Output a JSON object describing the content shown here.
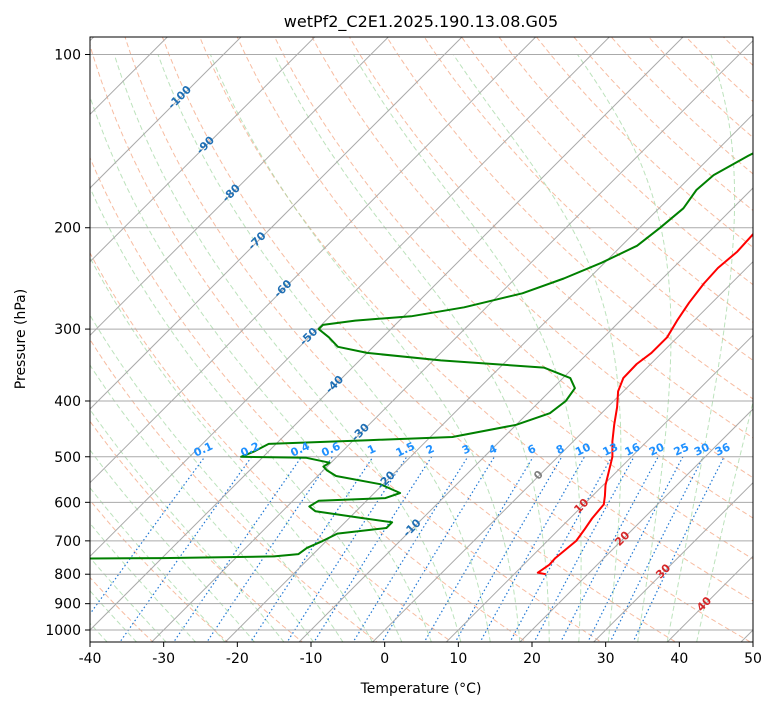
{
  "chart_data": {
    "type": "line",
    "title": "wetPf2_C2E1.2025.190.13.08.G05",
    "xlabel": "Temperature (°C)",
    "ylabel": "Pressure (hPa)",
    "x_scale": "skew-T",
    "y_scale": "log",
    "xlim": [
      -40,
      50
    ],
    "ylim": [
      1050,
      100
    ],
    "x_ticks": [
      -40,
      -30,
      -20,
      -10,
      0,
      10,
      20,
      30,
      40,
      50
    ],
    "y_ticks": [
      1000,
      900,
      800,
      700,
      600,
      500,
      400,
      300,
      200,
      100
    ],
    "grid": true,
    "colors": {
      "temperature": "#ff0000",
      "dewpoint": "#008000",
      "isotherm": "#aaaaaa",
      "dry_adiabat": "#f4a582",
      "moist_adiabat": "#a6d8a6",
      "mixing_ratio": "#1f77d4",
      "isotherm_label": "#1f6fb4",
      "moist_label": "#d62728",
      "mixing_label": "#1e90ff"
    },
    "series": [
      {
        "name": "",
        "role": "temperature",
        "points": [
          [
            14.3,
            800
          ],
          [
            13.0,
            795
          ],
          [
            13.5,
            770
          ],
          [
            13.4,
            750
          ],
          [
            13.9,
            700
          ],
          [
            13.5,
            670
          ],
          [
            13.0,
            640
          ],
          [
            12.7,
            605
          ],
          [
            11.7,
            585
          ],
          [
            10.3,
            560
          ],
          [
            8.9,
            530
          ],
          [
            7.4,
            500
          ],
          [
            5.3,
            470
          ],
          [
            3.3,
            440
          ],
          [
            1.3,
            410
          ],
          [
            -0.7,
            385
          ],
          [
            -1.8,
            365
          ],
          [
            -1.9,
            345
          ],
          [
            -1.4,
            330
          ],
          [
            -1.4,
            310
          ],
          [
            -2.3,
            290
          ],
          [
            -3.1,
            270
          ],
          [
            -3.7,
            250
          ],
          [
            -3.9,
            235
          ],
          [
            -3.5,
            220
          ],
          [
            -3.8,
            200
          ],
          [
            -5.6,
            180
          ],
          [
            -7.6,
            160
          ],
          [
            -10.2,
            145
          ],
          [
            -12.6,
            130
          ],
          [
            -15.4,
            117
          ],
          [
            -18.6,
            107
          ],
          [
            -21.4,
            100
          ]
        ]
      },
      {
        "name": "",
        "role": "dewpoint",
        "points": [
          [
            -56,
            752
          ],
          [
            -40,
            750
          ],
          [
            -25,
            745
          ],
          [
            -22,
            738
          ],
          [
            -21.7,
            720
          ],
          [
            -20.5,
            700
          ],
          [
            -19.5,
            680
          ],
          [
            -13.6,
            665
          ],
          [
            -13.6,
            650
          ],
          [
            -18.6,
            638
          ],
          [
            -25.5,
            622
          ],
          [
            -27.0,
            610
          ],
          [
            -26.5,
            596
          ],
          [
            -17.8,
            590
          ],
          [
            -16.5,
            578
          ],
          [
            -20.4,
            558
          ],
          [
            -27.5,
            540
          ],
          [
            -29.5,
            528
          ],
          [
            -30.5,
            520
          ],
          [
            -30.2,
            512
          ],
          [
            -34.0,
            502
          ],
          [
            -43.0,
            500
          ],
          [
            -42.0,
            490
          ],
          [
            -41.0,
            475
          ],
          [
            -28.0,
            468
          ],
          [
            -17.0,
            462
          ],
          [
            -10.0,
            440
          ],
          [
            -7.0,
            420
          ],
          [
            -6.5,
            400
          ],
          [
            -7.0,
            380
          ],
          [
            -9.0,
            365
          ],
          [
            -14.0,
            350
          ],
          [
            -29.0,
            340
          ],
          [
            -40.0,
            330
          ],
          [
            -44.8,
            322
          ],
          [
            -47.3,
            310
          ],
          [
            -49.8,
            300
          ],
          [
            -49.8,
            295
          ],
          [
            -46.0,
            290
          ],
          [
            -39.0,
            285
          ],
          [
            -33.0,
            275
          ],
          [
            -27.0,
            260
          ],
          [
            -23.4,
            245
          ],
          [
            -20.4,
            230
          ],
          [
            -17.9,
            215
          ],
          [
            -17.2,
            200
          ],
          [
            -16.7,
            185
          ],
          [
            -17.4,
            172
          ],
          [
            -17.1,
            162
          ],
          [
            -15.0,
            150
          ],
          [
            -12.9,
            140
          ],
          [
            -11.4,
            130
          ],
          [
            -10.0,
            122
          ],
          [
            -8.0,
            110
          ],
          [
            -5.7,
            100
          ]
        ]
      }
    ],
    "isotherm_labels": [
      "-100",
      "-90",
      "-80",
      "-70",
      "-60",
      "-50",
      "-40",
      "-30",
      "-20",
      "-10",
      "0",
      "10",
      "20",
      "30",
      "40"
    ],
    "mixing_ratio_labels": [
      "0.1",
      "0.2",
      "0.4",
      "0.6",
      "1",
      "1.5",
      "2",
      "3",
      "4",
      "6",
      "8",
      "10",
      "13",
      "16",
      "20",
      "25",
      "30",
      "36"
    ]
  }
}
